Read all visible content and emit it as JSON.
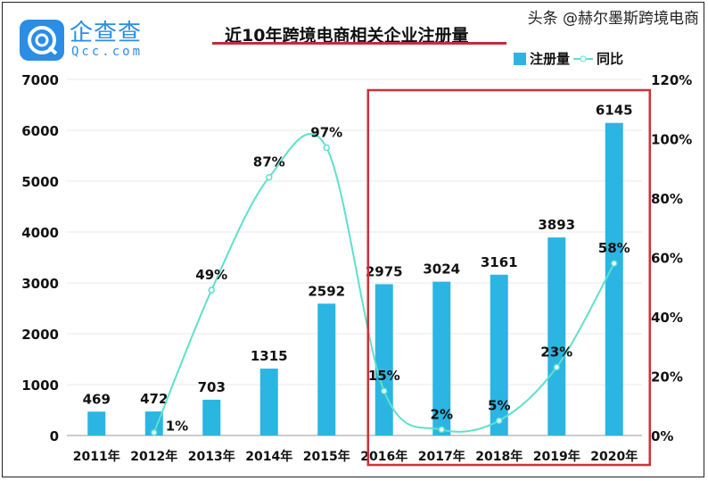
{
  "brand": {
    "name": "企查查",
    "domain": "Qcc.com",
    "color": "#2a8de6"
  },
  "watermark": "头条 @赫尔墨斯跨境电商",
  "chart_data": {
    "type": "bar",
    "title": "近10年跨境电商相关企业注册量",
    "categories": [
      "2011年",
      "2012年",
      "2013年",
      "2014年",
      "2015年",
      "2016年",
      "2017年",
      "2018年",
      "2019年",
      "2020年"
    ],
    "series": [
      {
        "name": "注册量",
        "type": "bar",
        "axis": "left",
        "color": "#2bb5e3",
        "values": [
          469,
          472,
          703,
          1315,
          2592,
          2975,
          3024,
          3161,
          3893,
          6145
        ]
      },
      {
        "name": "同比",
        "type": "line",
        "axis": "right",
        "color": "#5fe0cc",
        "values": [
          null,
          1,
          49,
          87,
          97,
          15,
          2,
          5,
          23,
          58
        ]
      }
    ],
    "left_axis": {
      "ylim": [
        0,
        7000
      ],
      "ticks": [
        0,
        1000,
        2000,
        3000,
        4000,
        5000,
        6000,
        7000
      ]
    },
    "right_axis": {
      "ylim": [
        0,
        120
      ],
      "ticks": [
        "0%",
        "20%",
        "40%",
        "60%",
        "80%",
        "100%",
        "120%"
      ]
    },
    "legend": "top-right",
    "grid": true,
    "highlight_box": {
      "from": "2016年",
      "to": "2020年",
      "color": "#d0303a"
    }
  }
}
